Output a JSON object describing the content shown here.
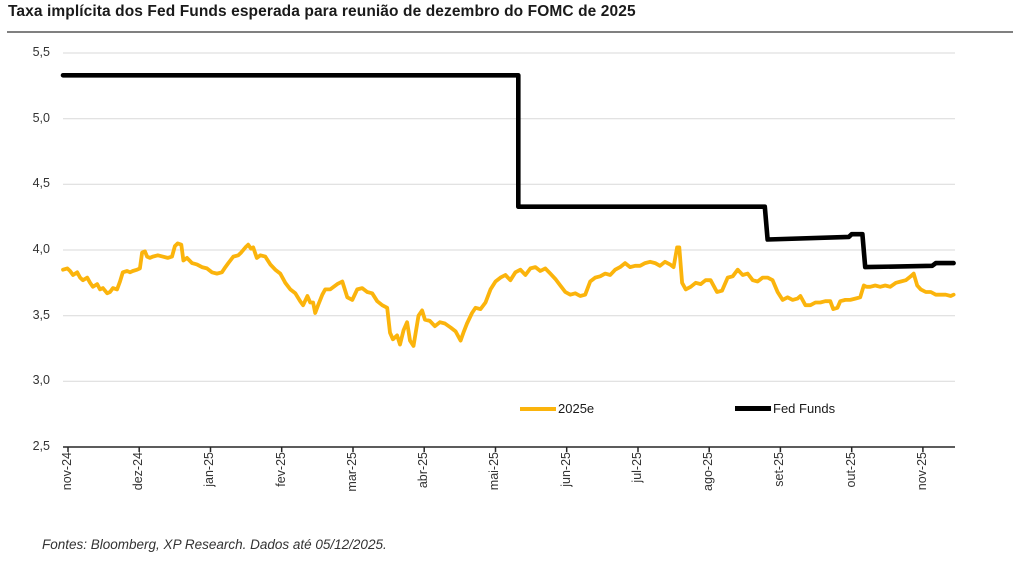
{
  "title": "Taxa implícita dos Fed Funds esperada para reunião de dezembro do FOMC de 2025",
  "source": "Fontes: Bloomberg, XP Research. Dados até 05/12/2025.",
  "colors": {
    "background": "#ffffff",
    "grid": "#d9d9d9",
    "axis": "#262626",
    "title_rule": "#808080",
    "series_2025e": "#FBB40C",
    "series_fed_funds": "#000000"
  },
  "chart_data": {
    "type": "line",
    "title": "Taxa implícita dos Fed Funds esperada para reunião de dezembro do FOMC de 2025",
    "xlabel": "",
    "ylabel": "",
    "x_unit": "months since nov-2024",
    "xlim": [
      -0.07,
      12.45
    ],
    "ylim": [
      2.5,
      5.5
    ],
    "grid": "horizontal",
    "legend_position": "bottom-center-inside",
    "y_ticks": [
      {
        "value": 2.5,
        "label": "2,5"
      },
      {
        "value": 3.0,
        "label": "3,0"
      },
      {
        "value": 3.5,
        "label": "3,5"
      },
      {
        "value": 4.0,
        "label": "4,0"
      },
      {
        "value": 4.5,
        "label": "4,5"
      },
      {
        "value": 5.0,
        "label": "5,0"
      },
      {
        "value": 5.5,
        "label": "5,5"
      }
    ],
    "x_ticks": [
      {
        "t": 0,
        "label": "nov-24"
      },
      {
        "t": 1,
        "label": "dez-24"
      },
      {
        "t": 2,
        "label": "jan-25"
      },
      {
        "t": 3,
        "label": "fev-25"
      },
      {
        "t": 4,
        "label": "mar-25"
      },
      {
        "t": 5,
        "label": "abr-25"
      },
      {
        "t": 6,
        "label": "mai-25"
      },
      {
        "t": 7,
        "label": "jun-25"
      },
      {
        "t": 8,
        "label": "jul-25"
      },
      {
        "t": 9,
        "label": "ago-25"
      },
      {
        "t": 10,
        "label": "set-25"
      },
      {
        "t": 11,
        "label": "out-25"
      },
      {
        "t": 12,
        "label": "nov-25"
      }
    ],
    "series": [
      {
        "name": "2025e",
        "color": "#FBB40C",
        "width": 3.8,
        "points": [
          [
            -0.07,
            3.85
          ],
          [
            -0.01,
            3.86
          ],
          [
            0.03,
            3.84
          ],
          [
            0.07,
            3.81
          ],
          [
            0.13,
            3.83
          ],
          [
            0.17,
            3.79
          ],
          [
            0.21,
            3.77
          ],
          [
            0.27,
            3.79
          ],
          [
            0.31,
            3.75
          ],
          [
            0.35,
            3.72
          ],
          [
            0.41,
            3.74
          ],
          [
            0.45,
            3.7
          ],
          [
            0.49,
            3.71
          ],
          [
            0.55,
            3.67
          ],
          [
            0.59,
            3.68
          ],
          [
            0.63,
            3.71
          ],
          [
            0.69,
            3.7
          ],
          [
            0.73,
            3.76
          ],
          [
            0.77,
            3.83
          ],
          [
            0.83,
            3.84
          ],
          [
            0.87,
            3.83
          ],
          [
            0.91,
            3.84
          ],
          [
            0.97,
            3.85
          ],
          [
            1.01,
            3.86
          ],
          [
            1.04,
            3.98
          ],
          [
            1.08,
            3.99
          ],
          [
            1.11,
            3.95
          ],
          [
            1.15,
            3.94
          ],
          [
            1.19,
            3.95
          ],
          [
            1.26,
            3.96
          ],
          [
            1.33,
            3.95
          ],
          [
            1.4,
            3.94
          ],
          [
            1.46,
            3.95
          ],
          [
            1.5,
            4.03
          ],
          [
            1.54,
            4.05
          ],
          [
            1.59,
            4.04
          ],
          [
            1.62,
            3.92
          ],
          [
            1.67,
            3.94
          ],
          [
            1.74,
            3.9
          ],
          [
            1.81,
            3.89
          ],
          [
            1.88,
            3.87
          ],
          [
            1.95,
            3.86
          ],
          [
            2.02,
            3.83
          ],
          [
            2.09,
            3.82
          ],
          [
            2.16,
            3.83
          ],
          [
            2.21,
            3.87
          ],
          [
            2.25,
            3.9
          ],
          [
            2.32,
            3.95
          ],
          [
            2.39,
            3.96
          ],
          [
            2.43,
            3.98
          ],
          [
            2.49,
            4.02
          ],
          [
            2.53,
            4.04
          ],
          [
            2.57,
            4.01
          ],
          [
            2.6,
            4.02
          ],
          [
            2.65,
            3.94
          ],
          [
            2.7,
            3.96
          ],
          [
            2.77,
            3.95
          ],
          [
            2.84,
            3.89
          ],
          [
            2.91,
            3.85
          ],
          [
            2.98,
            3.82
          ],
          [
            3.05,
            3.75
          ],
          [
            3.12,
            3.7
          ],
          [
            3.19,
            3.67
          ],
          [
            3.26,
            3.61
          ],
          [
            3.3,
            3.58
          ],
          [
            3.36,
            3.65
          ],
          [
            3.4,
            3.6
          ],
          [
            3.44,
            3.6
          ],
          [
            3.47,
            3.52
          ],
          [
            3.51,
            3.58
          ],
          [
            3.57,
            3.66
          ],
          [
            3.61,
            3.7
          ],
          [
            3.68,
            3.7
          ],
          [
            3.78,
            3.74
          ],
          [
            3.85,
            3.76
          ],
          [
            3.92,
            3.64
          ],
          [
            3.99,
            3.62
          ],
          [
            4.06,
            3.7
          ],
          [
            4.13,
            3.71
          ],
          [
            4.2,
            3.68
          ],
          [
            4.27,
            3.67
          ],
          [
            4.34,
            3.61
          ],
          [
            4.41,
            3.58
          ],
          [
            4.48,
            3.56
          ],
          [
            4.52,
            3.37
          ],
          [
            4.56,
            3.32
          ],
          [
            4.62,
            3.35
          ],
          [
            4.66,
            3.28
          ],
          [
            4.71,
            3.39
          ],
          [
            4.76,
            3.45
          ],
          [
            4.8,
            3.31
          ],
          [
            4.85,
            3.27
          ],
          [
            4.92,
            3.5
          ],
          [
            4.97,
            3.54
          ],
          [
            5.01,
            3.47
          ],
          [
            5.08,
            3.46
          ],
          [
            5.15,
            3.42
          ],
          [
            5.22,
            3.45
          ],
          [
            5.29,
            3.44
          ],
          [
            5.37,
            3.41
          ],
          [
            5.44,
            3.38
          ],
          [
            5.51,
            3.31
          ],
          [
            5.55,
            3.37
          ],
          [
            5.6,
            3.44
          ],
          [
            5.67,
            3.52
          ],
          [
            5.72,
            3.56
          ],
          [
            5.79,
            3.55
          ],
          [
            5.86,
            3.6
          ],
          [
            5.93,
            3.7
          ],
          [
            6.0,
            3.76
          ],
          [
            6.07,
            3.79
          ],
          [
            6.14,
            3.81
          ],
          [
            6.21,
            3.77
          ],
          [
            6.28,
            3.83
          ],
          [
            6.35,
            3.85
          ],
          [
            6.42,
            3.81
          ],
          [
            6.49,
            3.86
          ],
          [
            6.56,
            3.87
          ],
          [
            6.63,
            3.84
          ],
          [
            6.7,
            3.86
          ],
          [
            6.77,
            3.82
          ],
          [
            6.84,
            3.78
          ],
          [
            6.91,
            3.73
          ],
          [
            6.98,
            3.68
          ],
          [
            7.05,
            3.66
          ],
          [
            7.12,
            3.67
          ],
          [
            7.19,
            3.65
          ],
          [
            7.26,
            3.66
          ],
          [
            7.33,
            3.76
          ],
          [
            7.4,
            3.79
          ],
          [
            7.47,
            3.8
          ],
          [
            7.54,
            3.82
          ],
          [
            7.61,
            3.81
          ],
          [
            7.68,
            3.85
          ],
          [
            7.75,
            3.87
          ],
          [
            7.82,
            3.9
          ],
          [
            7.89,
            3.87
          ],
          [
            7.96,
            3.88
          ],
          [
            8.03,
            3.88
          ],
          [
            8.1,
            3.9
          ],
          [
            8.17,
            3.91
          ],
          [
            8.24,
            3.9
          ],
          [
            8.31,
            3.88
          ],
          [
            8.38,
            3.91
          ],
          [
            8.45,
            3.89
          ],
          [
            8.5,
            3.87
          ],
          [
            8.55,
            4.02
          ],
          [
            8.58,
            4.02
          ],
          [
            8.62,
            3.75
          ],
          [
            8.67,
            3.7
          ],
          [
            8.74,
            3.72
          ],
          [
            8.81,
            3.75
          ],
          [
            8.88,
            3.74
          ],
          [
            8.95,
            3.77
          ],
          [
            9.02,
            3.77
          ],
          [
            9.11,
            3.68
          ],
          [
            9.18,
            3.69
          ],
          [
            9.26,
            3.79
          ],
          [
            9.33,
            3.8
          ],
          [
            9.4,
            3.85
          ],
          [
            9.47,
            3.81
          ],
          [
            9.54,
            3.82
          ],
          [
            9.61,
            3.77
          ],
          [
            9.68,
            3.76
          ],
          [
            9.75,
            3.79
          ],
          [
            9.82,
            3.79
          ],
          [
            9.89,
            3.77
          ],
          [
            9.96,
            3.68
          ],
          [
            10.03,
            3.62
          ],
          [
            10.1,
            3.64
          ],
          [
            10.17,
            3.62
          ],
          [
            10.24,
            3.63
          ],
          [
            10.28,
            3.65
          ],
          [
            10.35,
            3.58
          ],
          [
            10.42,
            3.58
          ],
          [
            10.49,
            3.6
          ],
          [
            10.56,
            3.6
          ],
          [
            10.63,
            3.61
          ],
          [
            10.7,
            3.61
          ],
          [
            10.74,
            3.55
          ],
          [
            10.8,
            3.56
          ],
          [
            10.84,
            3.61
          ],
          [
            10.91,
            3.62
          ],
          [
            10.98,
            3.62
          ],
          [
            11.05,
            3.63
          ],
          [
            11.12,
            3.64
          ],
          [
            11.17,
            3.73
          ],
          [
            11.21,
            3.72
          ],
          [
            11.26,
            3.72
          ],
          [
            11.33,
            3.73
          ],
          [
            11.4,
            3.72
          ],
          [
            11.47,
            3.73
          ],
          [
            11.54,
            3.72
          ],
          [
            11.62,
            3.75
          ],
          [
            11.69,
            3.76
          ],
          [
            11.76,
            3.77
          ],
          [
            11.83,
            3.8
          ],
          [
            11.87,
            3.82
          ],
          [
            11.92,
            3.73
          ],
          [
            11.97,
            3.7
          ],
          [
            12.04,
            3.68
          ],
          [
            12.11,
            3.68
          ],
          [
            12.18,
            3.66
          ],
          [
            12.25,
            3.66
          ],
          [
            12.32,
            3.66
          ],
          [
            12.39,
            3.65
          ],
          [
            12.43,
            3.66
          ]
        ]
      },
      {
        "name": "Fed Funds",
        "color": "#000000",
        "width": 4.6,
        "points": [
          [
            -0.07,
            5.33
          ],
          [
            6.32,
            5.33
          ],
          [
            6.32,
            4.33
          ],
          [
            9.78,
            4.33
          ],
          [
            9.82,
            4.08
          ],
          [
            10.96,
            4.1
          ],
          [
            11.0,
            4.12
          ],
          [
            11.15,
            4.12
          ],
          [
            11.19,
            3.87
          ],
          [
            12.13,
            3.88
          ],
          [
            12.18,
            3.9
          ],
          [
            12.43,
            3.9
          ]
        ]
      }
    ]
  }
}
